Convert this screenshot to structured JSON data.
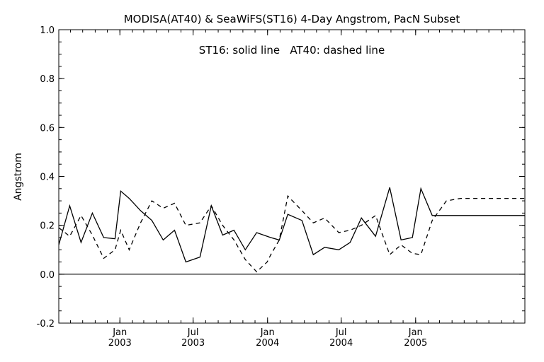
{
  "chart_data": {
    "type": "line",
    "title": "MODISA(AT40) & SeaWiFS(ST16) 4-Day Angstrom, PacN Subset",
    "annotation": "ST16: solid line   AT40: dashed line",
    "xlabel": "",
    "ylabel": "Angstrom",
    "ylim": [
      -0.2,
      1.0
    ],
    "yticks": [
      "-0.2",
      "0.0",
      "0.2",
      "0.4",
      "0.6",
      "0.8",
      "1.0"
    ],
    "ytick_values": [
      -0.2,
      0.0,
      0.2,
      0.4,
      0.6,
      0.8,
      1.0
    ],
    "xlim": [
      "2002-08-03",
      "2005-09-28"
    ],
    "xticks": [
      {
        "date": "2003-01-01",
        "month": "Jan",
        "year": "2003"
      },
      {
        "date": "2003-07-01",
        "month": "Jul",
        "year": "2003"
      },
      {
        "date": "2004-01-01",
        "month": "Jan",
        "year": "2004"
      },
      {
        "date": "2004-07-01",
        "month": "Jul",
        "year": "2004"
      },
      {
        "date": "2005-01-01",
        "month": "Jan",
        "year": "2005"
      }
    ],
    "reference_line": 0.0,
    "grid": false,
    "series": [
      {
        "name": "ST16",
        "style": "solid",
        "color": "#000000",
        "x": [
          "2002-08-03",
          "2002-08-30",
          "2002-09-27",
          "2002-10-25",
          "2002-11-22",
          "2002-12-20",
          "2003-01-03",
          "2003-01-24",
          "2003-02-21",
          "2003-03-21",
          "2003-04-18",
          "2003-05-16",
          "2003-06-13",
          "2003-07-18",
          "2003-08-15",
          "2003-09-12",
          "2003-10-10",
          "2003-11-07",
          "2003-12-05",
          "2003-12-31",
          "2004-01-09",
          "2004-01-30",
          "2004-02-20",
          "2004-03-26",
          "2004-04-23",
          "2004-05-21",
          "2004-06-25",
          "2004-07-23",
          "2004-08-20",
          "2004-09-24",
          "2004-10-29",
          "2004-11-26",
          "2004-12-24",
          "2005-01-14",
          "2005-02-11",
          "2005-03-18",
          "2005-04-22",
          "2005-05-20",
          "2005-06-17",
          "2005-07-15",
          "2005-08-12",
          "2005-09-09",
          "2005-09-28"
        ],
        "y": [
          0.12,
          0.28,
          0.13,
          0.25,
          0.15,
          0.145,
          0.34,
          0.31,
          0.26,
          0.22,
          0.14,
          0.18,
          0.05,
          0.07,
          0.28,
          0.16,
          0.18,
          0.1,
          0.17,
          0.155,
          0.15,
          0.14,
          0.245,
          0.22,
          0.08,
          0.11,
          0.1,
          0.13,
          0.23,
          0.155,
          0.355,
          0.14,
          0.15,
          0.35,
          0.24,
          0.24,
          0.24,
          0.24,
          0.24,
          0.24,
          0.24,
          0.24,
          0.24
        ]
      },
      {
        "name": "AT40",
        "style": "dashed",
        "color": "#000000",
        "x": [
          "2002-08-03",
          "2002-08-30",
          "2002-09-27",
          "2002-10-25",
          "2002-11-22",
          "2002-12-20",
          "2003-01-03",
          "2003-01-24",
          "2003-02-21",
          "2003-03-21",
          "2003-04-18",
          "2003-05-16",
          "2003-06-13",
          "2003-07-18",
          "2003-08-15",
          "2003-09-12",
          "2003-10-10",
          "2003-11-07",
          "2003-12-05",
          "2003-12-31",
          "2004-01-09",
          "2004-01-30",
          "2004-02-20",
          "2004-03-26",
          "2004-04-23",
          "2004-05-21",
          "2004-06-25",
          "2004-07-23",
          "2004-08-20",
          "2004-09-24",
          "2004-10-29",
          "2004-11-26",
          "2004-12-24",
          "2005-01-14",
          "2005-02-11",
          "2005-03-18",
          "2005-04-22",
          "2005-05-20",
          "2005-06-17",
          "2005-07-15",
          "2005-08-12",
          "2005-09-09",
          "2005-09-28"
        ],
        "y": [
          0.19,
          0.155,
          0.24,
          0.16,
          0.065,
          0.1,
          0.18,
          0.1,
          0.21,
          0.3,
          0.27,
          0.29,
          0.2,
          0.21,
          0.28,
          0.2,
          0.14,
          0.06,
          0.01,
          0.05,
          0.08,
          0.14,
          0.32,
          0.26,
          0.21,
          0.23,
          0.17,
          0.18,
          0.2,
          0.24,
          0.08,
          0.12,
          0.085,
          0.08,
          0.22,
          0.3,
          0.31,
          0.31,
          0.31,
          0.31,
          0.31,
          0.31,
          0.31
        ]
      }
    ]
  }
}
